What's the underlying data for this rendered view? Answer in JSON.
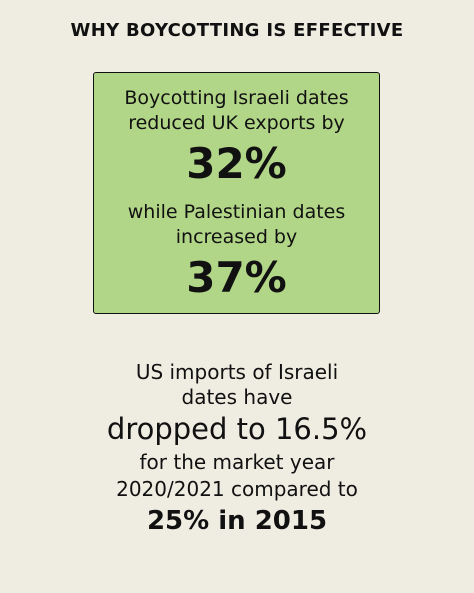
{
  "title": "WHY BOYCOTTING IS EFFECTIVE",
  "uk_box": {
    "line1": "Boycotting Israeli dates",
    "line2": "reduced UK exports by",
    "pct1": "32%",
    "line3": "while Palestinian dates",
    "line4": "increased by",
    "pct2": "37%",
    "background_color": "#b2d687"
  },
  "us_section": {
    "line1": "US imports of Israeli",
    "line2": "dates have",
    "line3": "dropped to 16.5%",
    "line4": "for the market year",
    "line5": "2020/2021 compared to",
    "line6": "25% in 2015"
  },
  "colors": {
    "background": "#efece1",
    "text": "#111111"
  }
}
